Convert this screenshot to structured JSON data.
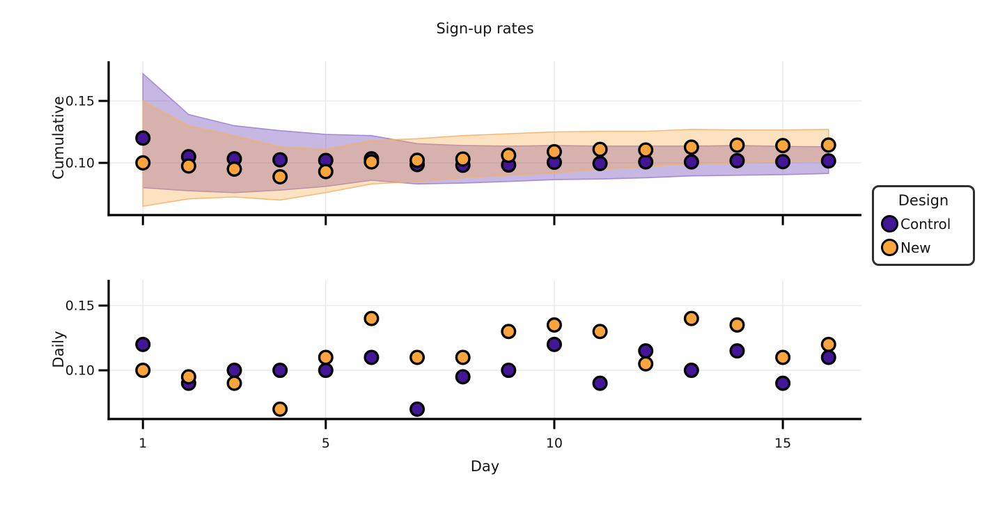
{
  "title": "Sign-up rates",
  "colors": {
    "control": "#431698",
    "new": "#f9a43d",
    "control_band_fill": "#5b32b0",
    "control_band_alpha": 0.35,
    "control_band_stroke": "#9a7fd1",
    "new_band_fill": "#f9a43d",
    "new_band_alpha": 0.32,
    "new_band_stroke": "#f2b166",
    "grid": "#e6e6e6",
    "axis": "#000000",
    "marker_outline": "#000000",
    "text": "#141414"
  },
  "legend": {
    "title": "Design",
    "entries": [
      {
        "label": "Control",
        "color": "#431698"
      },
      {
        "label": "New",
        "color": "#f9a43d"
      }
    ]
  },
  "chart_data": [
    {
      "type": "scatter",
      "panel": "cumulative",
      "ylabel": "Cumulative",
      "x": [
        1,
        2,
        3,
        4,
        5,
        6,
        7,
        8,
        9,
        10,
        11,
        12,
        13,
        14,
        15,
        16
      ],
      "xticks": [
        1,
        5,
        10,
        15
      ],
      "xtick_labels": [
        "1",
        "5",
        "10",
        "15"
      ],
      "show_xtick_labels": false,
      "yticks": [
        0.1,
        0.15
      ],
      "ytick_labels": [
        "0.10",
        "0.15"
      ],
      "xlim": [
        0.25,
        16.72
      ],
      "ylim": [
        0.0579,
        0.182
      ],
      "grid": true,
      "series": [
        {
          "name": "Control",
          "color": "#431698",
          "values": [
            0.12,
            0.105,
            0.1033,
            0.1025,
            0.102,
            0.1033,
            0.0986,
            0.0981,
            0.0983,
            0.1005,
            0.0995,
            0.1008,
            0.1008,
            0.1018,
            0.101,
            0.1016
          ],
          "band_lower": [
            0.08,
            0.0775,
            0.076,
            0.078,
            0.081,
            0.086,
            0.083,
            0.0837,
            0.085,
            0.0865,
            0.087,
            0.088,
            0.0895,
            0.09,
            0.0905,
            0.0915
          ],
          "band_upper": [
            0.172,
            0.139,
            0.13,
            0.126,
            0.123,
            0.122,
            0.1155,
            0.114,
            0.1135,
            0.114,
            0.1135,
            0.1135,
            0.1135,
            0.114,
            0.1133,
            0.113
          ]
        },
        {
          "name": "New",
          "color": "#f9a43d",
          "values": [
            0.1,
            0.0975,
            0.095,
            0.0888,
            0.093,
            0.1008,
            0.1021,
            0.1031,
            0.1061,
            0.109,
            0.1109,
            0.1104,
            0.1127,
            0.1143,
            0.114,
            0.1144
          ],
          "band_lower": [
            0.065,
            0.071,
            0.0725,
            0.07,
            0.076,
            0.083,
            0.085,
            0.088,
            0.09,
            0.092,
            0.095,
            0.097,
            0.099,
            0.1,
            0.101,
            0.102
          ],
          "band_upper": [
            0.15,
            0.13,
            0.122,
            0.113,
            0.111,
            0.118,
            0.1195,
            0.122,
            0.1235,
            0.125,
            0.1255,
            0.1255,
            0.127,
            0.1265,
            0.1265,
            0.127
          ]
        }
      ]
    },
    {
      "type": "scatter",
      "panel": "daily",
      "ylabel": "Daily",
      "xlabel": "Day",
      "x": [
        1,
        2,
        3,
        4,
        5,
        6,
        7,
        8,
        9,
        10,
        11,
        12,
        13,
        14,
        15,
        16
      ],
      "xticks": [
        1,
        5,
        10,
        15
      ],
      "xtick_labels": [
        "1",
        "5",
        "10",
        "15"
      ],
      "show_xtick_labels": true,
      "yticks": [
        0.1,
        0.15
      ],
      "ytick_labels": [
        "0.10",
        "0.15"
      ],
      "xlim": [
        0.25,
        16.72
      ],
      "ylim": [
        0.0624,
        0.1699
      ],
      "grid": true,
      "series": [
        {
          "name": "Control",
          "color": "#431698",
          "values": [
            0.12,
            0.09,
            0.1,
            0.1,
            0.1,
            0.11,
            0.07,
            0.095,
            0.1,
            0.12,
            0.09,
            0.115,
            0.1,
            0.115,
            0.09,
            0.11
          ]
        },
        {
          "name": "New",
          "color": "#f9a43d",
          "values": [
            0.1,
            0.095,
            0.09,
            0.07,
            0.11,
            0.14,
            0.11,
            0.11,
            0.13,
            0.135,
            0.13,
            0.105,
            0.14,
            0.135,
            0.11,
            0.12
          ]
        }
      ]
    }
  ]
}
